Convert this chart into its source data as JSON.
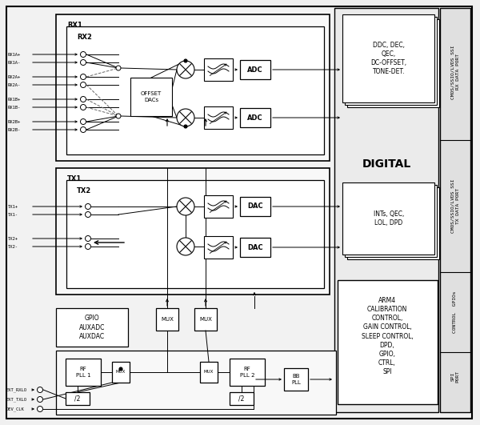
{
  "bg_color": "#f0f0f0",
  "chip_bg": "#e8e8e8",
  "box_color": "#ffffff",
  "line_color": "#000000",
  "right_panel_bg": "#f4f4f4",
  "digital_rx_text": "DDC, DEC,\nQEC,\nDC-OFFSET,\nTONE-DET.",
  "digital_tx_text": "INTs, QEC,\nLOL, DPD",
  "digital_label": "DIGITAL",
  "arm4_text": "ARM4\nCALIBRATION\nCONTROL,\nGAIN CONTROL,\nSLEEP CONTROL,\nDPD,\nGPIO,\nCTRL,\nSPI",
  "rx_labels": [
    "RX1A+",
    "RX1A-",
    "RX2A+",
    "RX2A-",
    "RX1B+",
    "RX1B-",
    "RX2B+",
    "RX2B-"
  ],
  "tx_labels": [
    "TX1+",
    "TX1-",
    "TX2+",
    "TX2-"
  ],
  "bottom_labels": [
    "EXT_RXLO",
    "EXT_TXLO",
    "DEV_CLK"
  ],
  "right_rot_labels": [
    "CMOS/SSIO/LVDS SSI\nRX DATA PORT",
    "CMOS/SSIO/LVDS SSI\nTX DATA PORT",
    "CONTROL  GPIOs",
    "SPI\nPORT"
  ],
  "gpio_text": "GPIO\nAUXADC\nAUXDAC"
}
